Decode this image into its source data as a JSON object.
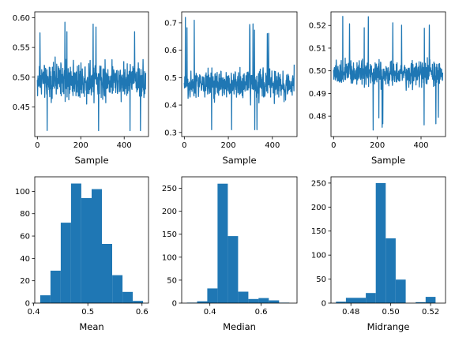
{
  "chart_data": [
    {
      "type": "line",
      "xlabel": "Sample",
      "ylabel": "",
      "title": "",
      "xlim": [
        -12,
        512
      ],
      "ylim": [
        0.4,
        0.61
      ],
      "xticks": [
        "0",
        "200",
        "400"
      ],
      "yticks": [
        "0.45",
        "0.50",
        "0.55",
        "0.60"
      ],
      "series": [
        {
          "color": "#1f77b4",
          "n_points": 500,
          "center": 0.495,
          "spread": 0.032,
          "min": 0.41,
          "max": 0.6
        }
      ]
    },
    {
      "type": "line",
      "xlabel": "Sample",
      "ylabel": "",
      "title": "",
      "xlim": [
        -12,
        512
      ],
      "ylim": [
        0.285,
        0.74
      ],
      "xticks": [
        "0",
        "200",
        "400"
      ],
      "yticks": [
        "0.3",
        "0.4",
        "0.5",
        "0.6",
        "0.7"
      ],
      "series": [
        {
          "color": "#1f77b4",
          "n_points": 500,
          "center": 0.475,
          "spread": 0.055,
          "min": 0.31,
          "max": 0.72
        }
      ]
    },
    {
      "type": "line",
      "xlabel": "Sample",
      "ylabel": "",
      "title": "",
      "xlim": [
        -12,
        512
      ],
      "ylim": [
        0.471,
        0.526
      ],
      "xticks": [
        "0",
        "200",
        "400"
      ],
      "yticks": [
        "0.48",
        "0.49",
        "0.50",
        "0.51",
        "0.52"
      ],
      "series": [
        {
          "color": "#1f77b4",
          "n_points": 500,
          "center": 0.499,
          "spread": 0.006,
          "min": 0.473,
          "max": 0.524
        }
      ]
    },
    {
      "type": "bar",
      "subtype": "histogram",
      "xlabel": "Mean",
      "ylabel": "",
      "title": "",
      "xlim": [
        0.402,
        0.612
      ],
      "ylim": [
        0,
        113
      ],
      "xticks": [
        "0.4",
        "0.5",
        "0.6"
      ],
      "yticks": [
        "0",
        "20",
        "40",
        "60",
        "80",
        "100"
      ],
      "bin_edges": [
        0.412,
        0.431,
        0.45,
        0.469,
        0.488,
        0.507,
        0.526,
        0.545,
        0.564,
        0.583,
        0.602
      ],
      "values": [
        7,
        29,
        72,
        107,
        94,
        102,
        53,
        25,
        10,
        2
      ],
      "color": "#1f77b4"
    },
    {
      "type": "bar",
      "subtype": "histogram",
      "xlabel": "Median",
      "ylabel": "",
      "title": "",
      "xlim": [
        0.29,
        0.74
      ],
      "ylim": [
        0,
        275
      ],
      "xticks": [
        "0.4",
        "0.6"
      ],
      "yticks": [
        "0",
        "50",
        "100",
        "150",
        "200",
        "250"
      ],
      "bin_edges": [
        0.31,
        0.35,
        0.39,
        0.43,
        0.47,
        0.51,
        0.55,
        0.59,
        0.63,
        0.67,
        0.71
      ],
      "values": [
        1,
        4,
        32,
        260,
        146,
        25,
        9,
        11,
        6,
        1
      ],
      "color": "#1f77b4"
    },
    {
      "type": "bar",
      "subtype": "histogram",
      "xlabel": "Midrange",
      "ylabel": "",
      "title": "",
      "xlim": [
        0.47,
        0.5275
      ],
      "ylim": [
        0,
        263
      ],
      "xticks": [
        "0.48",
        "0.50",
        "0.52"
      ],
      "yticks": [
        "0",
        "50",
        "100",
        "150",
        "200",
        "250"
      ],
      "bin_edges": [
        0.4725,
        0.4775,
        0.4825,
        0.4875,
        0.4925,
        0.4975,
        0.5025,
        0.5075,
        0.5125,
        0.5175,
        0.5225,
        0.525
      ],
      "values": [
        3,
        11,
        11,
        21,
        250,
        135,
        49,
        0,
        2,
        13,
        0
      ],
      "color": "#1f77b4"
    }
  ]
}
